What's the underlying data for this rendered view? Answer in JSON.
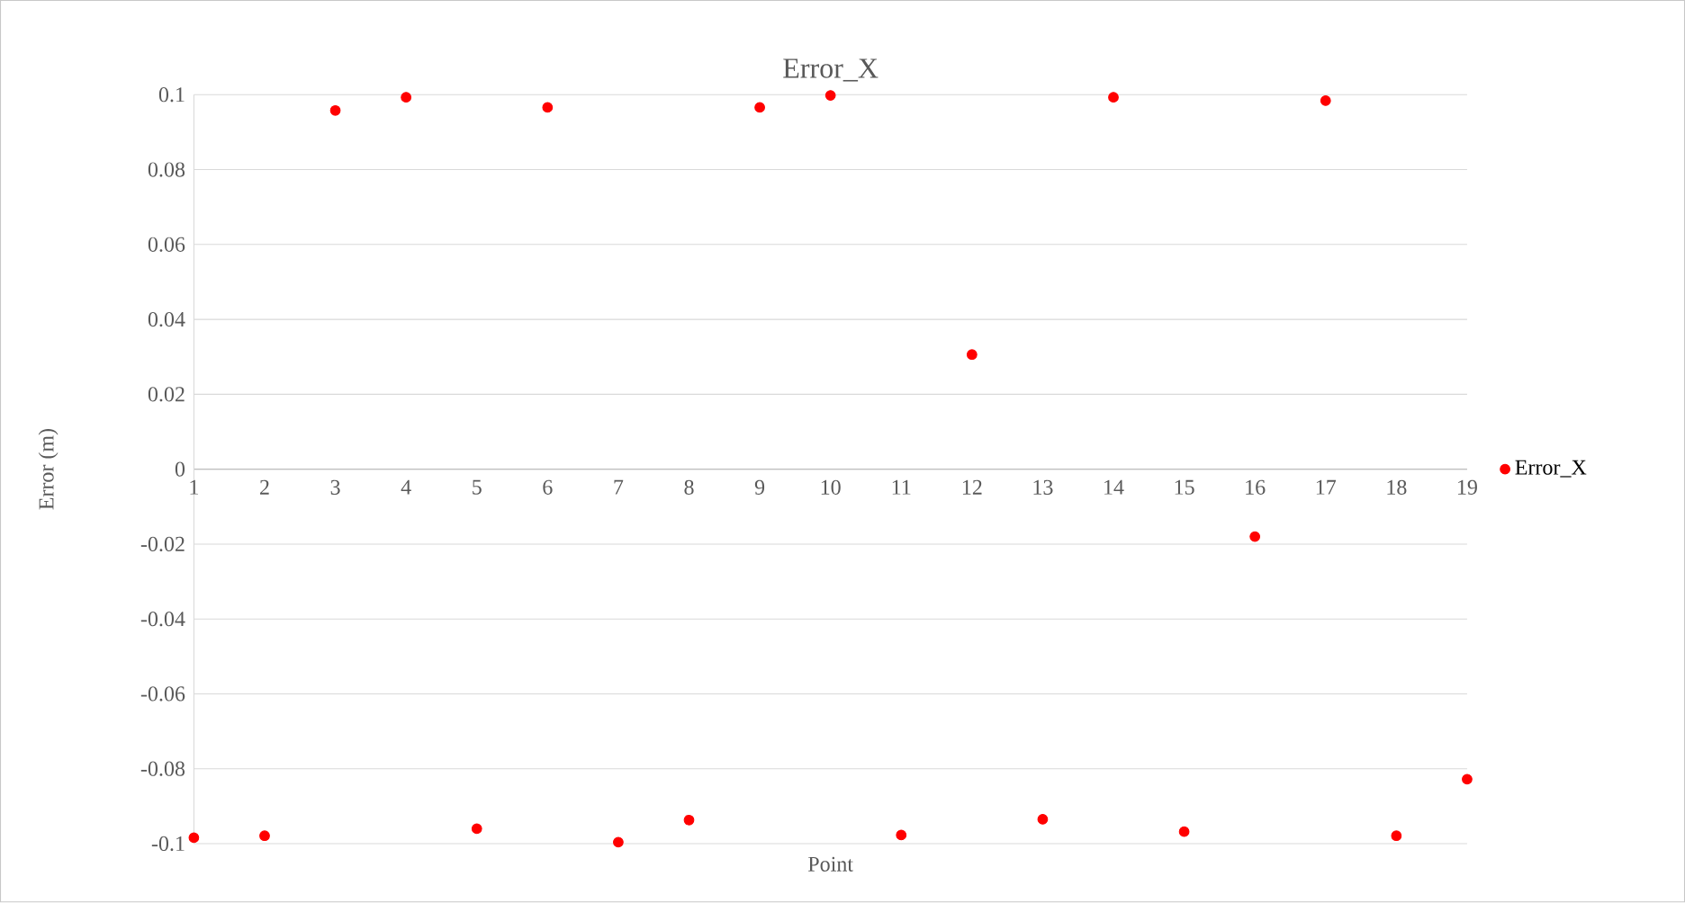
{
  "chart_data": {
    "type": "scatter",
    "title": "Error_X",
    "xlabel": "Point",
    "ylabel": "Error (m)",
    "x": [
      1,
      2,
      3,
      4,
      5,
      6,
      7,
      8,
      9,
      10,
      11,
      12,
      13,
      14,
      15,
      16,
      17,
      18,
      19
    ],
    "series": [
      {
        "name": "Error_X",
        "color": "#ff0000",
        "values": [
          -0.0984,
          -0.0979,
          0.0958,
          0.0993,
          -0.096,
          0.0966,
          -0.0996,
          -0.0937,
          0.0966,
          0.0998,
          -0.0977,
          0.0306,
          -0.0935,
          0.0993,
          -0.0968,
          -0.018,
          0.0984,
          -0.0979,
          -0.0828
        ]
      }
    ],
    "xlim": [
      1,
      19
    ],
    "xticks": [
      1,
      2,
      3,
      4,
      5,
      6,
      7,
      8,
      9,
      10,
      11,
      12,
      13,
      14,
      15,
      16,
      17,
      18,
      19
    ],
    "ylim": [
      -0.1,
      0.1
    ],
    "yticks": [
      -0.1,
      -0.08,
      -0.06,
      -0.04,
      -0.02,
      0,
      0.02,
      0.04,
      0.06,
      0.08,
      0.1
    ],
    "grid": "y",
    "legend": "right",
    "marker": "circle"
  }
}
